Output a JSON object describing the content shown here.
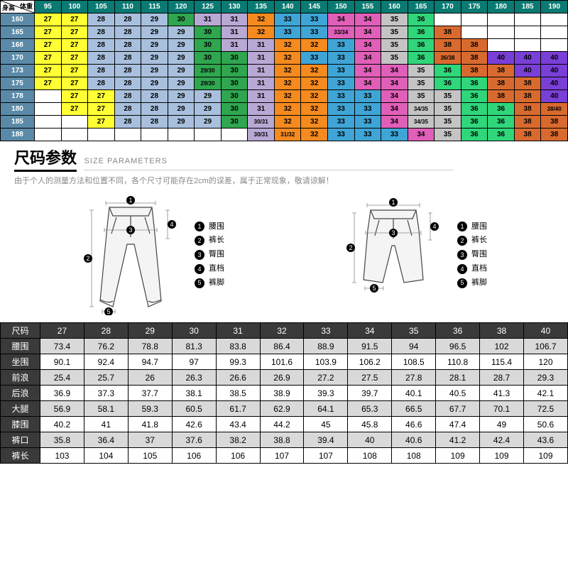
{
  "colors": {
    "head": "#0a7a73",
    "rowhead": "#5a8aa8",
    "yellow": "#ffff33",
    "lblue": "#a8c0dd",
    "green": "#2fa64f",
    "lpurple": "#b8a8d4",
    "orange": "#f58a1f",
    "cyan": "#3fa5d6",
    "teal": "#2aa0a0",
    "magenta": "#e05fb8",
    "gray": "#c4c4c4",
    "brightgreen": "#2fd67a",
    "dorange": "#d96a2f",
    "purple": "#7a3fd6",
    "white": "#ffffff"
  },
  "top_chart": {
    "corner_weight": "体重",
    "corner_height": "身高",
    "weights": [
      "95",
      "100",
      "105",
      "110",
      "115",
      "120",
      "125",
      "130",
      "135",
      "140",
      "145",
      "150",
      "155",
      "160",
      "165",
      "170",
      "175",
      "180",
      "185",
      "190"
    ],
    "heights": [
      "160",
      "165",
      "168",
      "170",
      "173",
      "175",
      "178",
      "180",
      "185",
      "188"
    ],
    "grid": [
      [
        [
          "27",
          "yellow"
        ],
        [
          "27",
          "yellow"
        ],
        [
          "28",
          "lblue"
        ],
        [
          "28",
          "lblue"
        ],
        [
          "29",
          "lblue"
        ],
        [
          "30",
          "green"
        ],
        [
          "31",
          "lpurple"
        ],
        [
          "31",
          "lpurple"
        ],
        [
          "32",
          "orange"
        ],
        [
          "33",
          "cyan"
        ],
        [
          "33",
          "cyan"
        ],
        [
          "34",
          "magenta"
        ],
        [
          "34",
          "magenta"
        ],
        [
          "35",
          "gray"
        ],
        [
          "36",
          "brightgreen"
        ],
        null,
        null,
        null,
        null,
        null
      ],
      [
        [
          "27",
          "yellow"
        ],
        [
          "27",
          "yellow"
        ],
        [
          "28",
          "lblue"
        ],
        [
          "28",
          "lblue"
        ],
        [
          "29",
          "lblue"
        ],
        [
          "29",
          "lblue"
        ],
        [
          "30",
          "green"
        ],
        [
          "31",
          "lpurple"
        ],
        [
          "32",
          "orange"
        ],
        [
          "33",
          "cyan"
        ],
        [
          "33",
          "cyan"
        ],
        [
          "33/34",
          "magenta"
        ],
        [
          "34",
          "magenta"
        ],
        [
          "35",
          "gray"
        ],
        [
          "36",
          "brightgreen"
        ],
        [
          "38",
          "dorange"
        ],
        null,
        null,
        null,
        null
      ],
      [
        [
          "27",
          "yellow"
        ],
        [
          "27",
          "yellow"
        ],
        [
          "28",
          "lblue"
        ],
        [
          "28",
          "lblue"
        ],
        [
          "29",
          "lblue"
        ],
        [
          "29",
          "lblue"
        ],
        [
          "30",
          "green"
        ],
        [
          "31",
          "lpurple"
        ],
        [
          "31",
          "lpurple"
        ],
        [
          "32",
          "orange"
        ],
        [
          "32",
          "orange"
        ],
        [
          "33",
          "cyan"
        ],
        [
          "34",
          "magenta"
        ],
        [
          "35",
          "gray"
        ],
        [
          "36",
          "brightgreen"
        ],
        [
          "38",
          "dorange"
        ],
        [
          "38",
          "dorange"
        ],
        null,
        null,
        null
      ],
      [
        [
          "27",
          "yellow"
        ],
        [
          "27",
          "yellow"
        ],
        [
          "28",
          "lblue"
        ],
        [
          "28",
          "lblue"
        ],
        [
          "29",
          "lblue"
        ],
        [
          "29",
          "lblue"
        ],
        [
          "30",
          "green"
        ],
        [
          "30",
          "green"
        ],
        [
          "31",
          "lpurple"
        ],
        [
          "32",
          "orange"
        ],
        [
          "33",
          "cyan"
        ],
        [
          "33",
          "cyan"
        ],
        [
          "34",
          "magenta"
        ],
        [
          "35",
          "gray"
        ],
        [
          "36",
          "brightgreen"
        ],
        [
          "36/38",
          "dorange"
        ],
        [
          "38",
          "dorange"
        ],
        [
          "40",
          "purple"
        ],
        [
          "40",
          "purple"
        ],
        [
          "40",
          "purple"
        ]
      ],
      [
        [
          "27",
          "yellow"
        ],
        [
          "27",
          "yellow"
        ],
        [
          "28",
          "lblue"
        ],
        [
          "28",
          "lblue"
        ],
        [
          "29",
          "lblue"
        ],
        [
          "29",
          "lblue"
        ],
        [
          "29/30",
          "green"
        ],
        [
          "30",
          "green"
        ],
        [
          "31",
          "lpurple"
        ],
        [
          "32",
          "orange"
        ],
        [
          "32",
          "orange"
        ],
        [
          "33",
          "cyan"
        ],
        [
          "34",
          "magenta"
        ],
        [
          "34",
          "magenta"
        ],
        [
          "35",
          "gray"
        ],
        [
          "36",
          "brightgreen"
        ],
        [
          "38",
          "dorange"
        ],
        [
          "38",
          "dorange"
        ],
        [
          "40",
          "purple"
        ],
        [
          "40",
          "purple"
        ]
      ],
      [
        [
          "27",
          "yellow"
        ],
        [
          "27",
          "yellow"
        ],
        [
          "28",
          "lblue"
        ],
        [
          "28",
          "lblue"
        ],
        [
          "29",
          "lblue"
        ],
        [
          "29",
          "lblue"
        ],
        [
          "29/30",
          "green"
        ],
        [
          "30",
          "green"
        ],
        [
          "31",
          "lpurple"
        ],
        [
          "32",
          "orange"
        ],
        [
          "32",
          "orange"
        ],
        [
          "33",
          "cyan"
        ],
        [
          "34",
          "magenta"
        ],
        [
          "34",
          "magenta"
        ],
        [
          "35",
          "gray"
        ],
        [
          "36",
          "brightgreen"
        ],
        [
          "36",
          "brightgreen"
        ],
        [
          "38",
          "dorange"
        ],
        [
          "38",
          "dorange"
        ],
        [
          "40",
          "purple"
        ]
      ],
      [
        null,
        [
          "27",
          "yellow"
        ],
        [
          "27",
          "yellow"
        ],
        [
          "28",
          "lblue"
        ],
        [
          "28",
          "lblue"
        ],
        [
          "29",
          "lblue"
        ],
        [
          "29",
          "lblue"
        ],
        [
          "30",
          "green"
        ],
        [
          "31",
          "lpurple"
        ],
        [
          "32",
          "orange"
        ],
        [
          "32",
          "orange"
        ],
        [
          "33",
          "cyan"
        ],
        [
          "33",
          "cyan"
        ],
        [
          "34",
          "magenta"
        ],
        [
          "35",
          "gray"
        ],
        [
          "35",
          "gray"
        ],
        [
          "36",
          "brightgreen"
        ],
        [
          "38",
          "dorange"
        ],
        [
          "38",
          "dorange"
        ],
        [
          "40",
          "purple"
        ]
      ],
      [
        null,
        [
          "27",
          "yellow"
        ],
        [
          "27",
          "yellow"
        ],
        [
          "28",
          "lblue"
        ],
        [
          "28",
          "lblue"
        ],
        [
          "29",
          "lblue"
        ],
        [
          "29",
          "lblue"
        ],
        [
          "30",
          "green"
        ],
        [
          "31",
          "lpurple"
        ],
        [
          "32",
          "orange"
        ],
        [
          "32",
          "orange"
        ],
        [
          "33",
          "cyan"
        ],
        [
          "33",
          "cyan"
        ],
        [
          "34",
          "magenta"
        ],
        [
          "34/35",
          "gray"
        ],
        [
          "35",
          "gray"
        ],
        [
          "36",
          "brightgreen"
        ],
        [
          "36",
          "brightgreen"
        ],
        [
          "38",
          "dorange"
        ],
        [
          "38/40",
          "dorange"
        ]
      ],
      [
        null,
        null,
        [
          "27",
          "yellow"
        ],
        [
          "28",
          "lblue"
        ],
        [
          "28",
          "lblue"
        ],
        [
          "29",
          "lblue"
        ],
        [
          "29",
          "lblue"
        ],
        [
          "30",
          "green"
        ],
        [
          "30/31",
          "lpurple"
        ],
        [
          "32",
          "orange"
        ],
        [
          "32",
          "orange"
        ],
        [
          "33",
          "cyan"
        ],
        [
          "33",
          "cyan"
        ],
        [
          "34",
          "magenta"
        ],
        [
          "34/35",
          "gray"
        ],
        [
          "35",
          "gray"
        ],
        [
          "36",
          "brightgreen"
        ],
        [
          "36",
          "brightgreen"
        ],
        [
          "38",
          "dorange"
        ],
        [
          "38",
          "dorange"
        ]
      ],
      [
        null,
        null,
        null,
        null,
        null,
        null,
        null,
        null,
        [
          "30/31",
          "lpurple"
        ],
        [
          "31/32",
          "orange"
        ],
        [
          "32",
          "orange"
        ],
        [
          "33",
          "cyan"
        ],
        [
          "33",
          "cyan"
        ],
        [
          "33",
          "cyan"
        ],
        [
          "34",
          "magenta"
        ],
        [
          "35",
          "gray"
        ],
        [
          "36",
          "brightgreen"
        ],
        [
          "36",
          "brightgreen"
        ],
        [
          "38",
          "dorange"
        ],
        [
          "38",
          "dorange"
        ]
      ]
    ]
  },
  "section": {
    "title_cn": "尺码参数",
    "title_en": "SIZE  PARAMETERS",
    "note": "由于个人的测量方法和位置不同，各个尺寸可能存在2cm的误差，属于正常现象，敬请谅解！"
  },
  "legend_items": [
    "腰围",
    "裤长",
    "臀围",
    "直档",
    "裤脚"
  ],
  "meas": {
    "header": [
      "尺码",
      "27",
      "28",
      "29",
      "30",
      "31",
      "32",
      "33",
      "34",
      "35",
      "36",
      "38",
      "40"
    ],
    "rows": [
      [
        "腰围",
        "73.4",
        "76.2",
        "78.8",
        "81.3",
        "83.8",
        "86.4",
        "88.9",
        "91.5",
        "94",
        "96.5",
        "102",
        "106.7"
      ],
      [
        "坐围",
        "90.1",
        "92.4",
        "94.7",
        "97",
        "99.3",
        "101.6",
        "103.9",
        "106.2",
        "108.5",
        "110.8",
        "115.4",
        "120"
      ],
      [
        "前浪",
        "25.4",
        "25.7",
        "26",
        "26.3",
        "26.6",
        "26.9",
        "27.2",
        "27.5",
        "27.8",
        "28.1",
        "28.7",
        "29.3"
      ],
      [
        "后浪",
        "36.9",
        "37.3",
        "37.7",
        "38.1",
        "38.5",
        "38.9",
        "39.3",
        "39.7",
        "40.1",
        "40.5",
        "41.3",
        "42.1"
      ],
      [
        "大腿",
        "56.9",
        "58.1",
        "59.3",
        "60.5",
        "61.7",
        "62.9",
        "64.1",
        "65.3",
        "66.5",
        "67.7",
        "70.1",
        "72.5"
      ],
      [
        "膝围",
        "40.2",
        "41",
        "41.8",
        "42.6",
        "43.4",
        "44.2",
        "45",
        "45.8",
        "46.6",
        "47.4",
        "49",
        "50.6"
      ],
      [
        "裤口",
        "35.8",
        "36.4",
        "37",
        "37.6",
        "38.2",
        "38.8",
        "39.4",
        "40",
        "40.6",
        "41.2",
        "42.4",
        "43.6"
      ],
      [
        "裤长",
        "103",
        "104",
        "105",
        "106",
        "106",
        "107",
        "107",
        "108",
        "108",
        "109",
        "109",
        "109"
      ]
    ]
  }
}
